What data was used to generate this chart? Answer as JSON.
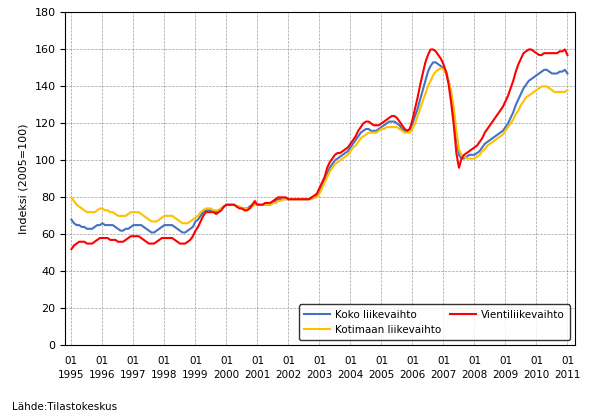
{
  "title": "",
  "ylabel": "Indeksi (2005=100)",
  "xlabel": "",
  "source_text": "Lähde:Tilastokeskus",
  "ylim": [
    0,
    180
  ],
  "yticks": [
    0,
    20,
    40,
    60,
    80,
    100,
    120,
    140,
    160,
    180
  ],
  "legend_labels": [
    "Koko liikevaihto",
    "Kotimaan liikevaihto",
    "Vientiliikevaihto"
  ],
  "colors": [
    "#4472C4",
    "#FFC000",
    "#FF0000"
  ],
  "linewidth": 1.5,
  "koko": [
    68,
    66,
    65,
    65,
    64,
    64,
    63,
    63,
    63,
    64,
    65,
    65,
    66,
    65,
    65,
    65,
    65,
    64,
    63,
    62,
    62,
    63,
    63,
    64,
    65,
    65,
    65,
    65,
    64,
    63,
    62,
    61,
    61,
    62,
    63,
    64,
    65,
    65,
    65,
    65,
    64,
    63,
    62,
    61,
    61,
    62,
    63,
    64,
    67,
    68,
    70,
    72,
    73,
    73,
    73,
    73,
    72,
    73,
    74,
    75,
    76,
    76,
    76,
    76,
    75,
    75,
    74,
    74,
    74,
    75,
    76,
    77,
    76,
    76,
    76,
    76,
    76,
    76,
    77,
    78,
    79,
    79,
    79,
    79,
    79,
    79,
    79,
    79,
    79,
    79,
    79,
    79,
    79,
    80,
    80,
    81,
    83,
    86,
    89,
    93,
    96,
    98,
    100,
    101,
    102,
    103,
    104,
    105,
    107,
    109,
    111,
    113,
    115,
    116,
    117,
    117,
    116,
    116,
    116,
    117,
    118,
    119,
    120,
    121,
    121,
    121,
    120,
    119,
    117,
    116,
    116,
    117,
    120,
    124,
    128,
    133,
    138,
    143,
    148,
    151,
    153,
    153,
    152,
    151,
    150,
    148,
    143,
    136,
    126,
    113,
    103,
    101,
    101,
    102,
    103,
    103,
    103,
    104,
    105,
    107,
    109,
    110,
    111,
    112,
    113,
    114,
    115,
    116,
    118,
    120,
    123,
    126,
    130,
    133,
    136,
    139,
    141,
    143,
    144,
    145,
    146,
    147,
    148,
    149,
    149,
    148,
    147,
    147,
    147,
    148,
    148,
    149,
    147
  ],
  "kotimaan": [
    80,
    78,
    76,
    75,
    74,
    73,
    72,
    72,
    72,
    72,
    73,
    74,
    74,
    73,
    73,
    72,
    72,
    71,
    70,
    70,
    70,
    70,
    71,
    72,
    72,
    72,
    72,
    71,
    70,
    69,
    68,
    67,
    67,
    67,
    68,
    69,
    70,
    70,
    70,
    70,
    69,
    68,
    67,
    66,
    66,
    66,
    67,
    68,
    69,
    70,
    72,
    73,
    74,
    74,
    74,
    73,
    73,
    73,
    74,
    75,
    76,
    76,
    76,
    76,
    75,
    75,
    74,
    74,
    74,
    74,
    75,
    76,
    76,
    76,
    76,
    76,
    76,
    76,
    77,
    77,
    78,
    78,
    79,
    79,
    79,
    79,
    79,
    79,
    79,
    79,
    79,
    79,
    79,
    79,
    80,
    80,
    82,
    85,
    88,
    91,
    94,
    96,
    98,
    99,
    100,
    101,
    102,
    103,
    105,
    107,
    108,
    110,
    112,
    113,
    114,
    115,
    115,
    115,
    115,
    116,
    117,
    117,
    118,
    118,
    118,
    118,
    118,
    117,
    116,
    115,
    115,
    115,
    117,
    120,
    124,
    128,
    132,
    136,
    140,
    143,
    146,
    148,
    149,
    150,
    149,
    147,
    143,
    137,
    128,
    116,
    106,
    103,
    102,
    101,
    101,
    101,
    101,
    102,
    103,
    105,
    106,
    108,
    109,
    110,
    111,
    112,
    113,
    114,
    116,
    118,
    120,
    122,
    125,
    127,
    130,
    132,
    134,
    135,
    136,
    137,
    138,
    139,
    140,
    140,
    140,
    139,
    138,
    137,
    137,
    137,
    137,
    137,
    138
  ],
  "vienti": [
    52,
    54,
    55,
    56,
    56,
    56,
    55,
    55,
    55,
    56,
    57,
    58,
    58,
    58,
    58,
    57,
    57,
    57,
    56,
    56,
    56,
    57,
    58,
    59,
    59,
    59,
    59,
    58,
    57,
    56,
    55,
    55,
    55,
    56,
    57,
    58,
    58,
    58,
    58,
    58,
    57,
    56,
    55,
    55,
    55,
    56,
    57,
    59,
    62,
    64,
    67,
    70,
    72,
    72,
    72,
    72,
    71,
    72,
    73,
    75,
    76,
    76,
    76,
    76,
    75,
    74,
    74,
    73,
    73,
    74,
    76,
    78,
    76,
    76,
    76,
    77,
    77,
    77,
    78,
    79,
    80,
    80,
    80,
    80,
    79,
    79,
    79,
    79,
    79,
    79,
    79,
    79,
    79,
    80,
    81,
    82,
    85,
    88,
    91,
    96,
    99,
    101,
    103,
    104,
    104,
    105,
    106,
    107,
    109,
    111,
    113,
    116,
    118,
    120,
    121,
    121,
    120,
    119,
    119,
    119,
    120,
    121,
    122,
    123,
    124,
    124,
    123,
    121,
    119,
    117,
    116,
    117,
    122,
    128,
    134,
    141,
    147,
    153,
    157,
    160,
    160,
    159,
    157,
    155,
    152,
    148,
    141,
    131,
    119,
    104,
    96,
    101,
    103,
    104,
    105,
    106,
    107,
    108,
    110,
    112,
    115,
    117,
    119,
    121,
    123,
    125,
    127,
    129,
    132,
    135,
    139,
    143,
    148,
    152,
    155,
    158,
    159,
    160,
    160,
    159,
    158,
    157,
    157,
    158,
    158,
    158,
    158,
    158,
    158,
    159,
    159,
    160,
    157
  ]
}
